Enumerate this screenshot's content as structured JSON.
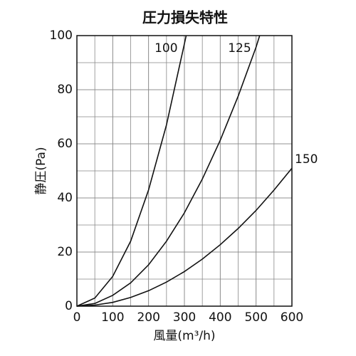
{
  "chart_data": {
    "type": "line",
    "title": "圧力損失特性",
    "x_label": "風量(m³/h)",
    "y_label": "静圧(Pa)",
    "xlim": [
      0,
      600
    ],
    "xticks": [
      0,
      100,
      200,
      300,
      400,
      500,
      600
    ],
    "ylim": [
      0,
      100
    ],
    "yticks": [
      0,
      20,
      40,
      60,
      80,
      100
    ],
    "grid": true,
    "color": "#111111",
    "series": [
      {
        "name": "100",
        "color": "#111111",
        "x": [
          0,
          50,
          100,
          150,
          200,
          250,
          300,
          305
        ],
        "values": [
          0,
          3,
          11,
          24,
          43,
          67,
          97,
          100
        ]
      },
      {
        "name": "125",
        "color": "#111111",
        "x": [
          0,
          50,
          100,
          150,
          200,
          250,
          300,
          350,
          400,
          450,
          500,
          510
        ],
        "values": [
          0,
          1,
          4,
          8.6,
          15.3,
          24,
          34.5,
          47,
          61.3,
          77.6,
          95.8,
          100
        ]
      },
      {
        "name": "150",
        "color": "#111111",
        "x": [
          0,
          50,
          100,
          150,
          200,
          250,
          300,
          350,
          400,
          450,
          500,
          550,
          600
        ],
        "values": [
          0,
          0.4,
          1.4,
          3.2,
          5.7,
          8.9,
          12.8,
          17.4,
          22.7,
          28.7,
          35.4,
          42.9,
          51
        ]
      }
    ]
  }
}
